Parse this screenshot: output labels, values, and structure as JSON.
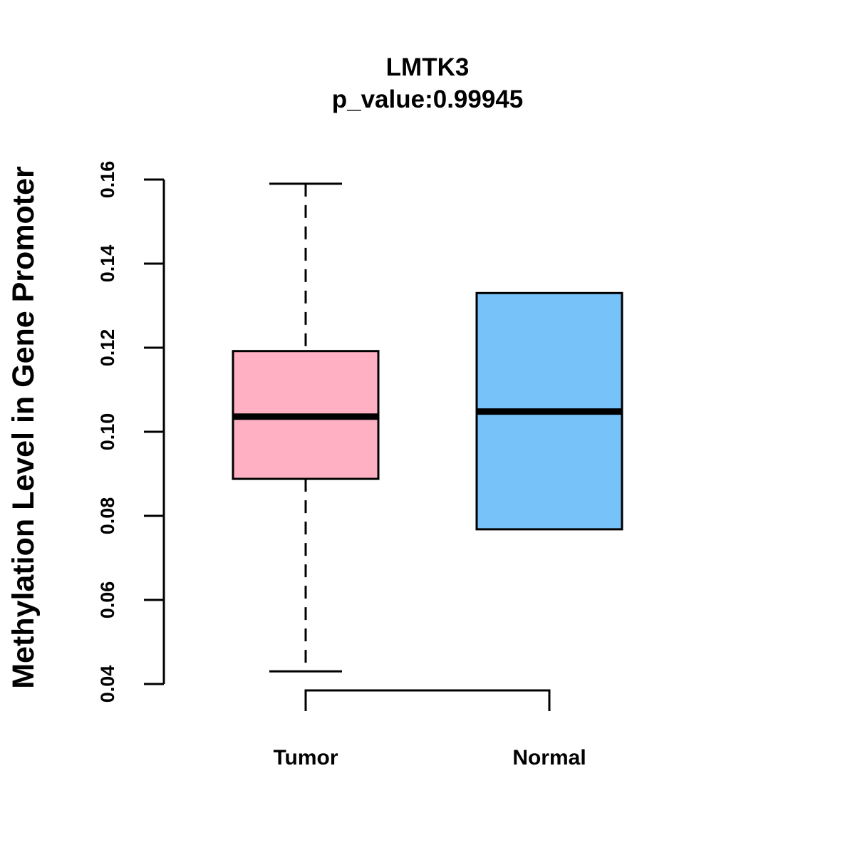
{
  "chart_data": {
    "type": "box",
    "title": "LMTK3",
    "subtitle": "p_value:0.99945",
    "xlabel": "",
    "ylabel": "Methylation Level in Gene Promoter",
    "ylim": [
      0.04,
      0.16
    ],
    "yticks": [
      "0.04",
      "0.06",
      "0.08",
      "0.10",
      "0.12",
      "0.14",
      "0.16"
    ],
    "categories": [
      "Tumor",
      "Normal"
    ],
    "boxes": [
      {
        "name": "Tumor",
        "min": 0.043,
        "q1": 0.0888,
        "median": 0.1036,
        "q3": 0.1192,
        "max": 0.159,
        "color": "#FFB1C3"
      },
      {
        "name": "Normal",
        "min": 0.0768,
        "q1": 0.0768,
        "median": 0.1048,
        "q3": 0.133,
        "max": 0.133,
        "color": "#77C2F9"
      }
    ],
    "significance_bracket": {
      "from": "Tumor",
      "to": "Normal",
      "label": ""
    }
  }
}
